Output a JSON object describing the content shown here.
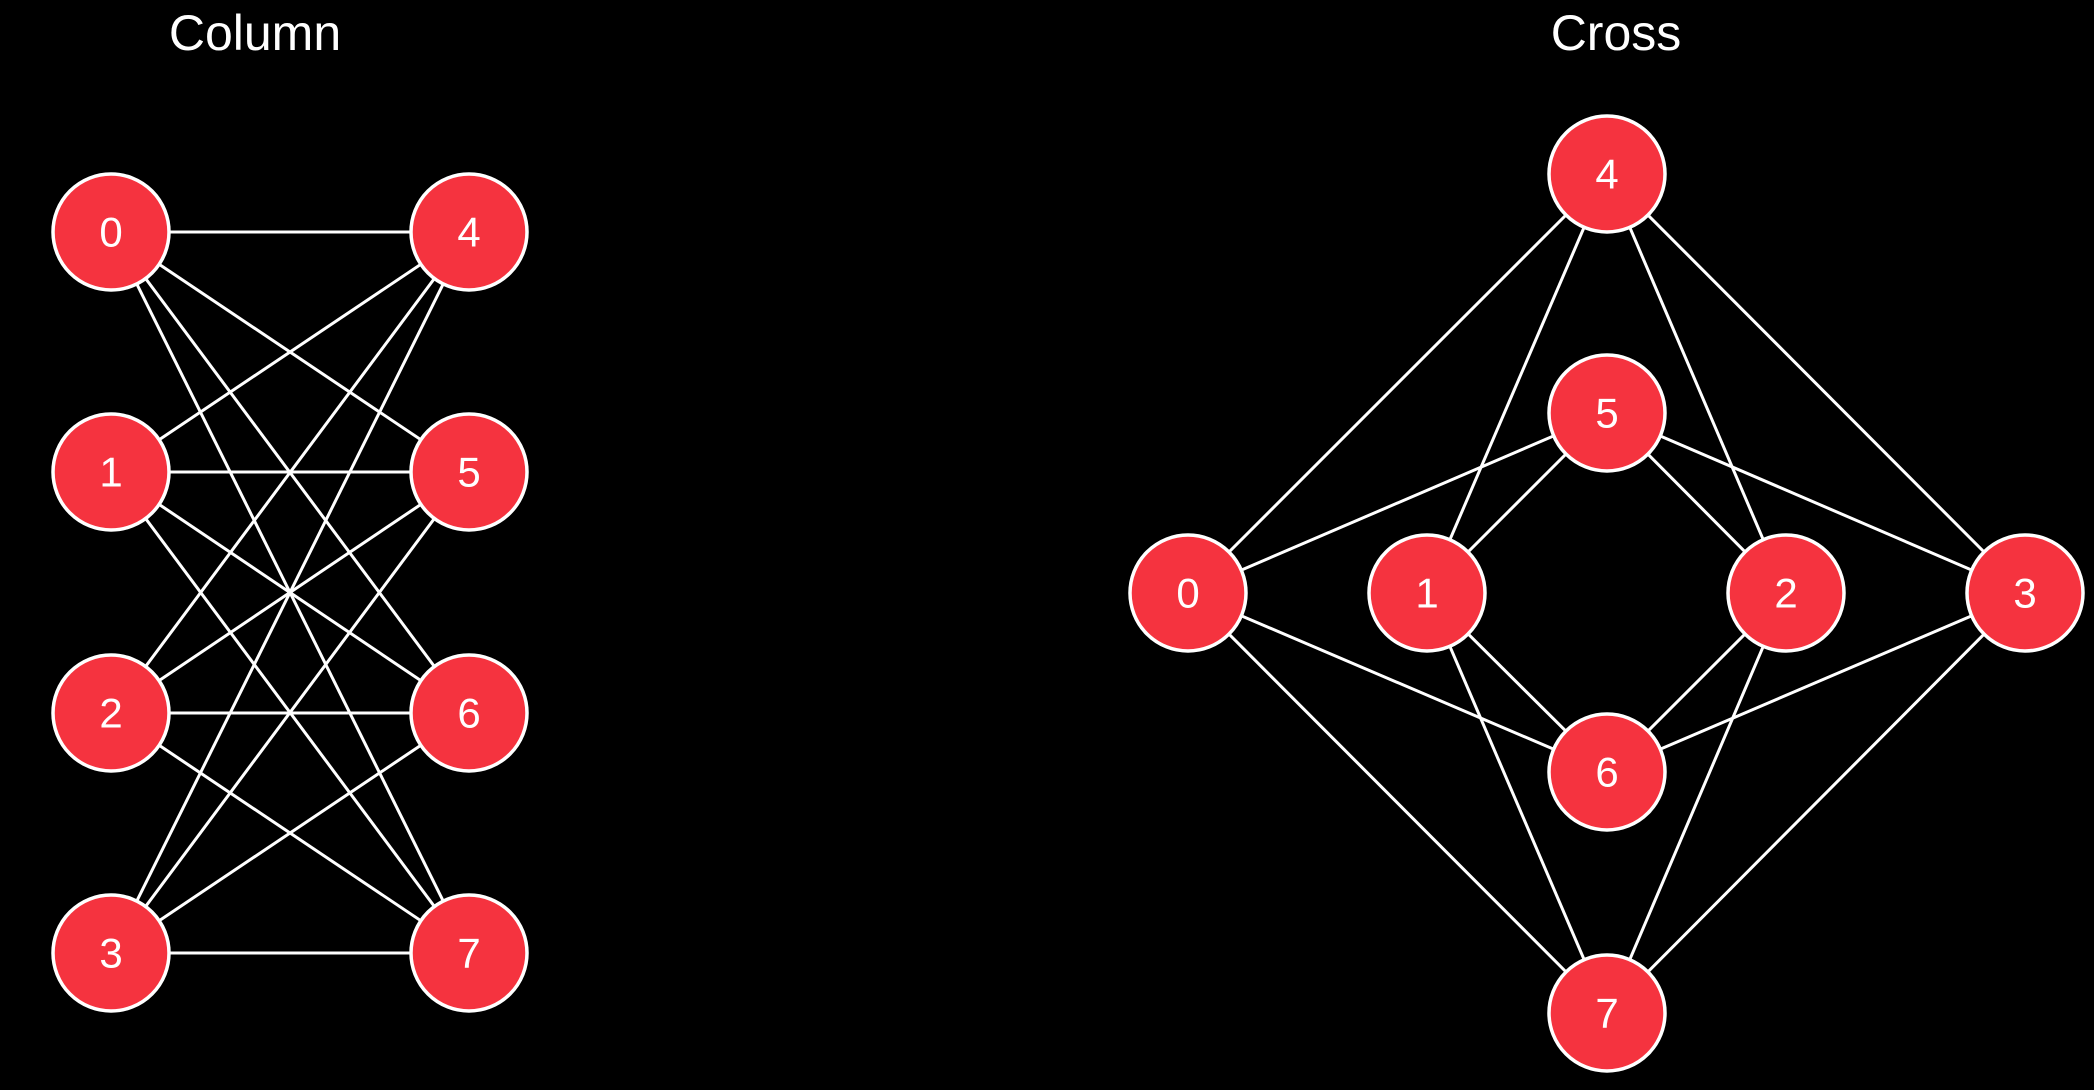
{
  "colors": {
    "background": "#000000",
    "node_fill": "#f5333f",
    "node_stroke": "#ffffff",
    "edge": "#ffffff",
    "text": "#ffffff"
  },
  "panels": [
    {
      "id": "column",
      "title": "Column",
      "nodes": [
        "0",
        "1",
        "2",
        "3",
        "4",
        "5",
        "6",
        "7"
      ],
      "edges": [
        [
          "0",
          "4"
        ],
        [
          "0",
          "5"
        ],
        [
          "0",
          "6"
        ],
        [
          "0",
          "7"
        ],
        [
          "1",
          "4"
        ],
        [
          "1",
          "5"
        ],
        [
          "1",
          "6"
        ],
        [
          "1",
          "7"
        ],
        [
          "2",
          "4"
        ],
        [
          "2",
          "5"
        ],
        [
          "2",
          "6"
        ],
        [
          "2",
          "7"
        ],
        [
          "3",
          "4"
        ],
        [
          "3",
          "5"
        ],
        [
          "3",
          "6"
        ],
        [
          "3",
          "7"
        ]
      ]
    },
    {
      "id": "cross",
      "title": "Cross",
      "nodes": [
        "0",
        "1",
        "2",
        "3",
        "4",
        "5",
        "6",
        "7"
      ],
      "edges": [
        [
          "0",
          "4"
        ],
        [
          "0",
          "5"
        ],
        [
          "0",
          "6"
        ],
        [
          "0",
          "7"
        ],
        [
          "1",
          "4"
        ],
        [
          "1",
          "5"
        ],
        [
          "1",
          "6"
        ],
        [
          "1",
          "7"
        ],
        [
          "2",
          "4"
        ],
        [
          "2",
          "5"
        ],
        [
          "2",
          "6"
        ],
        [
          "2",
          "7"
        ],
        [
          "3",
          "4"
        ],
        [
          "3",
          "5"
        ],
        [
          "3",
          "6"
        ],
        [
          "3",
          "7"
        ]
      ]
    }
  ]
}
